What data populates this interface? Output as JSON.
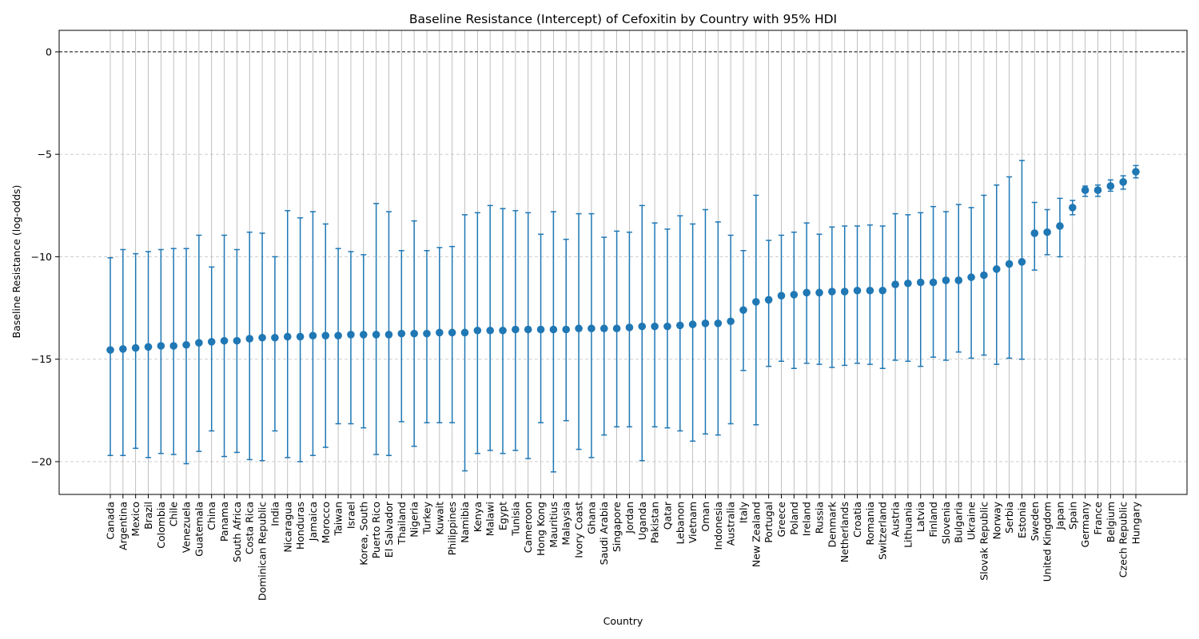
{
  "chart_data": {
    "type": "scatter",
    "title": "Baseline Resistance (Intercept) of Cefoxitin by Country with 95% HDI",
    "xlabel": "Country",
    "ylabel": "Baseline Resistance (log-odds)",
    "ylim": [
      -21.6,
      1.05
    ],
    "yticks": [
      0,
      -5,
      -10,
      -15,
      -20
    ],
    "reference_line": 0,
    "grid": true,
    "color": "#1f77b4",
    "categories": [
      "Canada",
      "Argentina",
      "Mexico",
      "Brazil",
      "Colombia",
      "Chile",
      "Venezuela",
      "Guatemala",
      "China",
      "Panama",
      "South Africa",
      "Costa Rica",
      "Dominican Republic",
      "India",
      "Nicaragua",
      "Honduras",
      "Jamaica",
      "Morocco",
      "Taiwan",
      "Israel",
      "Korea, South",
      "Puerto Rico",
      "El Salvador",
      "Thailand",
      "Nigeria",
      "Turkey",
      "Kuwait",
      "Philippines",
      "Namibia",
      "Kenya",
      "Malawi",
      "Egypt",
      "Tunisia",
      "Cameroon",
      "Hong Kong",
      "Mauritius",
      "Malaysia",
      "Ivory Coast",
      "Ghana",
      "Saudi Arabia",
      "Singapore",
      "Jordan",
      "Uganda",
      "Pakistan",
      "Qatar",
      "Lebanon",
      "Vietnam",
      "Oman",
      "Indonesia",
      "Australia",
      "Italy",
      "New Zealand",
      "Portugal",
      "Greece",
      "Poland",
      "Ireland",
      "Russia",
      "Denmark",
      "Netherlands",
      "Croatia",
      "Romania",
      "Switzerland",
      "Austria",
      "Lithuania",
      "Latvia",
      "Finland",
      "Slovenia",
      "Bulgaria",
      "Ukraine",
      "Slovak Republic",
      "Norway",
      "Serbia",
      "Estonia",
      "Sweden",
      "United Kingdom",
      "Japan",
      "Spain",
      "Germany",
      "France",
      "Belgium",
      "Czech Republic",
      "Hungary"
    ],
    "series": [
      {
        "values": [
          -14.55,
          -14.5,
          -14.45,
          -14.4,
          -14.35,
          -14.35,
          -14.3,
          -14.2,
          -14.15,
          -14.1,
          -14.1,
          -14.0,
          -13.95,
          -13.95,
          -13.9,
          -13.9,
          -13.85,
          -13.85,
          -13.85,
          -13.8,
          -13.8,
          -13.8,
          -13.8,
          -13.75,
          -13.75,
          -13.75,
          -13.7,
          -13.7,
          -13.7,
          -13.6,
          -13.6,
          -13.6,
          -13.55,
          -13.55,
          -13.55,
          -13.55,
          -13.55,
          -13.5,
          -13.5,
          -13.5,
          -13.5,
          -13.45,
          -13.4,
          -13.4,
          -13.4,
          -13.35,
          -13.3,
          -13.25,
          -13.25,
          -13.15,
          -12.6,
          -12.2,
          -12.1,
          -11.9,
          -11.85,
          -11.75,
          -11.75,
          -11.7,
          -11.7,
          -11.65,
          -11.65,
          -11.65,
          -11.35,
          -11.3,
          -11.25,
          -11.25,
          -11.15,
          -11.15,
          -11.0,
          -10.9,
          -10.6,
          -10.35,
          -10.25,
          -8.85,
          -8.8,
          -8.5,
          -7.6,
          -6.75,
          -6.75,
          -6.55,
          -6.35,
          -5.85
        ],
        "lower": [
          -19.7,
          -19.7,
          -19.35,
          -19.8,
          -19.6,
          -19.65,
          -20.1,
          -19.5,
          -18.5,
          -19.75,
          -19.55,
          -19.9,
          -19.95,
          -18.5,
          -19.8,
          -20.0,
          -19.7,
          -19.3,
          -18.15,
          -18.15,
          -18.35,
          -19.65,
          -19.7,
          -18.05,
          -19.25,
          -18.1,
          -18.1,
          -18.1,
          -20.45,
          -19.6,
          -19.45,
          -19.6,
          -19.45,
          -19.85,
          -18.1,
          -20.5,
          -18.0,
          -19.4,
          -19.8,
          -18.7,
          -18.3,
          -18.3,
          -19.95,
          -18.3,
          -18.35,
          -18.5,
          -19.0,
          -18.65,
          -18.7,
          -18.15,
          -15.55,
          -18.2,
          -15.35,
          -15.1,
          -15.45,
          -15.2,
          -15.25,
          -15.4,
          -15.3,
          -15.2,
          -15.25,
          -15.45,
          -15.05,
          -15.1,
          -15.35,
          -14.9,
          -15.05,
          -14.65,
          -14.95,
          -14.8,
          -15.25,
          -14.95,
          -15.0,
          -10.65,
          -9.9,
          -10.0,
          -7.95,
          -7.05,
          -7.05,
          -6.8,
          -6.7,
          -6.15
        ],
        "upper": [
          -10.05,
          -9.65,
          -9.85,
          -9.75,
          -9.65,
          -9.6,
          -9.6,
          -8.95,
          -10.5,
          -8.95,
          -9.65,
          -8.8,
          -8.85,
          -10.0,
          -7.75,
          -8.1,
          -7.8,
          -8.4,
          -9.6,
          -9.75,
          -9.9,
          -7.4,
          -7.8,
          -9.7,
          -8.25,
          -9.7,
          -9.55,
          -9.5,
          -7.95,
          -7.85,
          -7.5,
          -7.65,
          -7.75,
          -7.85,
          -8.9,
          -7.8,
          -9.15,
          -7.9,
          -7.9,
          -9.05,
          -8.75,
          -8.8,
          -7.5,
          -8.35,
          -8.65,
          -8.0,
          -8.4,
          -7.7,
          -8.3,
          -8.95,
          -9.7,
          -7.0,
          -9.2,
          -8.95,
          -8.8,
          -8.35,
          -8.9,
          -8.55,
          -8.5,
          -8.5,
          -8.45,
          -8.5,
          -7.9,
          -7.95,
          -7.85,
          -7.55,
          -7.8,
          -7.45,
          -7.6,
          -7.0,
          -6.5,
          -6.1,
          -5.3,
          -7.35,
          -7.7,
          -7.15,
          -7.25,
          -6.55,
          -6.5,
          -6.25,
          -6.05,
          -5.55
        ]
      }
    ]
  }
}
